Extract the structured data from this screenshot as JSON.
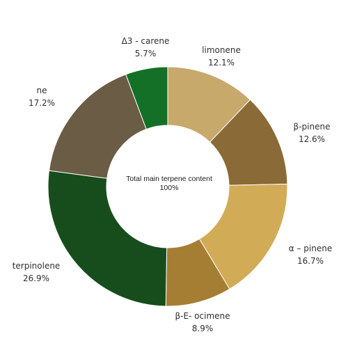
{
  "chart_data": {
    "type": "pie",
    "style": "donut",
    "center_text": {
      "line1": "Total main terpene content",
      "line2": "100%"
    },
    "slices": [
      {
        "name": "limonene",
        "value": 12.1,
        "value_label": "12.1%",
        "color": "#c8a96c"
      },
      {
        "name": "β-pinene",
        "value": 12.6,
        "value_label": "12.6%",
        "color": "#8a6a36"
      },
      {
        "name": "α – pinene",
        "value": 16.7,
        "value_label": "16.7%",
        "color": "#d2ab57"
      },
      {
        "name": "β-E- ocimene",
        "value": 8.9,
        "value_label": "8.9%",
        "color": "#a67e33"
      },
      {
        "name": "terpinolene",
        "value": 26.9,
        "value_label": "26.9%",
        "color": "#174d1d"
      },
      {
        "name": "ne",
        "value": 17.2,
        "value_label": "17.2%",
        "color": "#6b5c45"
      },
      {
        "name": "Δ3 - carene",
        "value": 5.7,
        "value_label": "5.7%",
        "color": "#147026"
      }
    ],
    "legend": "none"
  }
}
